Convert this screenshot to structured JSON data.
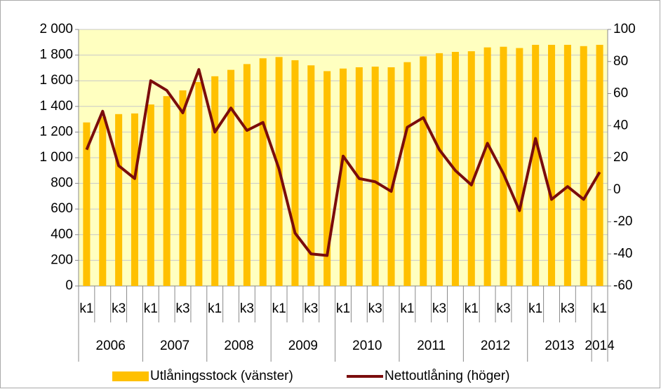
{
  "chart_data": {
    "type": "bar",
    "categories": [
      "k1",
      null,
      "k3",
      null,
      "k1",
      null,
      "k3",
      null,
      "k1",
      null,
      "k3",
      null,
      "k1",
      null,
      "k3",
      null,
      "k1",
      null,
      "k3",
      null,
      "k1",
      null,
      "k3",
      null,
      "k1",
      null,
      "k3",
      null,
      "k1",
      null,
      "k3",
      null,
      "k1"
    ],
    "groups": [
      "2006",
      "2007",
      "2008",
      "2009",
      "2010",
      "2011",
      "2012",
      "2013",
      "2014"
    ],
    "series": [
      {
        "name": "Utlåningsstock (vänster)",
        "type": "bar",
        "axis": "y",
        "color": "#ffc000",
        "values": [
          1275,
          1320,
          1340,
          1345,
          1415,
          1480,
          1525,
          1590,
          1635,
          1685,
          1730,
          1775,
          1785,
          1760,
          1720,
          1675,
          1695,
          1705,
          1710,
          1705,
          1745,
          1790,
          1815,
          1825,
          1830,
          1860,
          1865,
          1855,
          1880,
          1880,
          1880,
          1870,
          1880
        ]
      },
      {
        "name": "Nettoutlåning (höger)",
        "type": "line",
        "axis": "y2",
        "color": "#7b0c0c",
        "values": [
          25,
          49,
          15,
          7,
          68,
          62,
          48,
          75,
          36,
          51,
          37,
          42,
          13,
          -27,
          -40,
          -41,
          21,
          7,
          5,
          -1,
          39,
          45,
          25,
          12,
          3,
          29,
          10,
          -13,
          32,
          -6,
          2,
          -6,
          11
        ]
      }
    ],
    "ylim": [
      0,
      2000
    ],
    "yticks": [
      0,
      200,
      400,
      600,
      800,
      {
        "value": 1000,
        "label": "1 000"
      },
      {
        "value": 1200,
        "label": "1 200"
      },
      {
        "value": 1400,
        "label": "1 400"
      },
      {
        "value": 1600,
        "label": "1 600"
      },
      {
        "value": 1800,
        "label": "1 800"
      },
      {
        "value": 2000,
        "label": "2 000"
      }
    ],
    "y2lim": [
      -60,
      100
    ],
    "y2ticks": [
      -60,
      -40,
      -20,
      0,
      20,
      40,
      60,
      80,
      100
    ],
    "grid": true
  }
}
